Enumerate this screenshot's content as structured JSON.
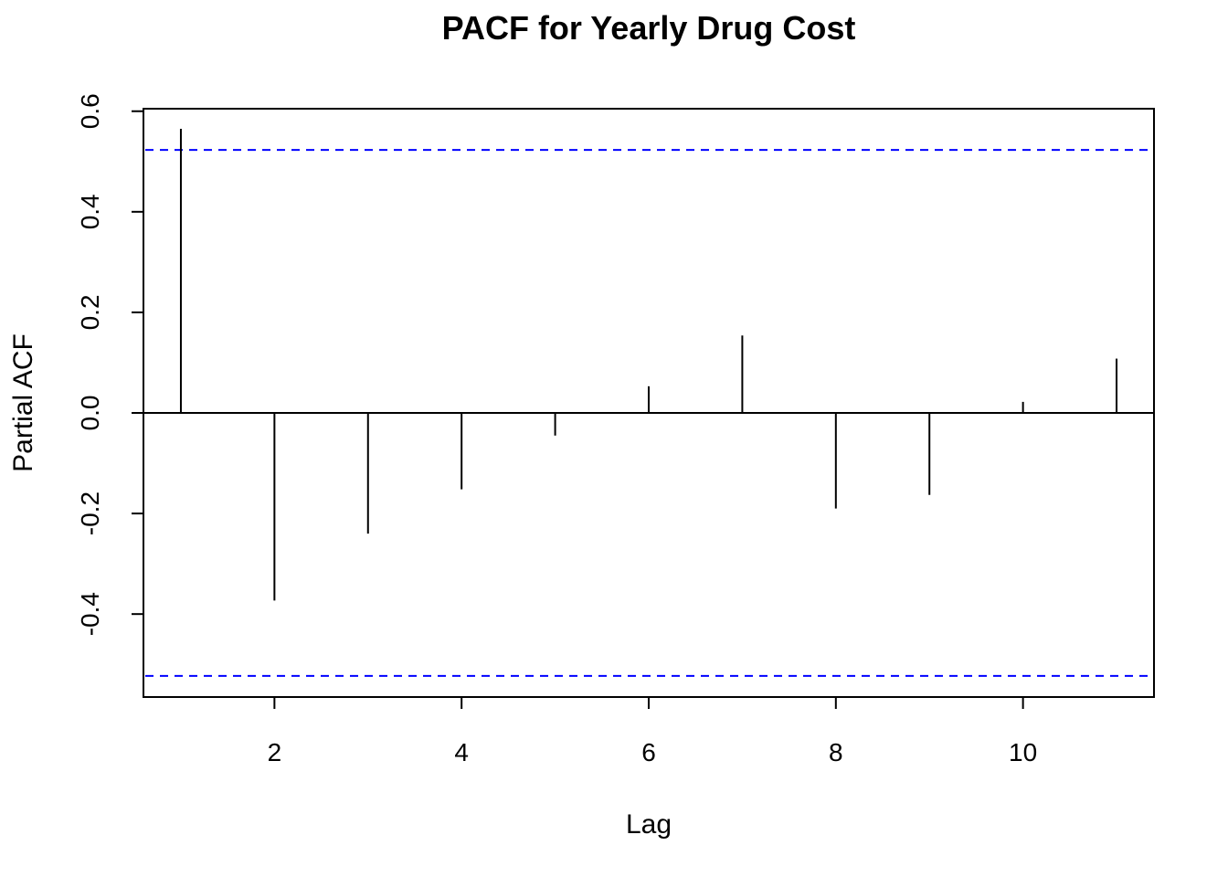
{
  "chart_data": {
    "type": "bar",
    "title": "PACF for Yearly Drug Cost",
    "xlabel": "Lag",
    "ylabel": "Partial ACF",
    "x": [
      1,
      2,
      3,
      4,
      5,
      6,
      7,
      8,
      9,
      10,
      11
    ],
    "values": [
      0.565,
      -0.373,
      -0.24,
      -0.152,
      -0.045,
      0.053,
      0.154,
      -0.19,
      -0.163,
      0.022,
      0.108
    ],
    "xlim": [
      0.6,
      11.4
    ],
    "ylim": [
      -0.565,
      0.605
    ],
    "x_ticks": [
      2,
      4,
      6,
      8,
      10
    ],
    "x_tick_labels": [
      "2",
      "4",
      "6",
      "8",
      "10"
    ],
    "y_ticks": [
      -0.4,
      -0.2,
      0.0,
      0.2,
      0.4,
      0.6
    ],
    "y_tick_labels": [
      "-0.4",
      "-0.2",
      "0.0",
      "0.2",
      "0.4",
      "0.6"
    ],
    "confidence_bound": 0.523,
    "confidence_color": "#0000ff",
    "spike_color": "#000000",
    "grid": false
  }
}
